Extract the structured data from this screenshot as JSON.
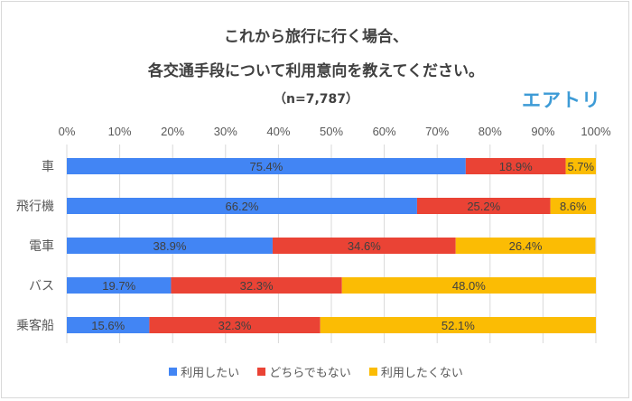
{
  "title_line1": "これから旅行に行く場合、",
  "title_line2": "各交通手段について利用意向を教えてください。",
  "subtitle": "（n=7,787）",
  "logo": "エアトリ",
  "chart_data": {
    "type": "bar",
    "orientation": "horizontal",
    "stacked": "100%",
    "title": "これから旅行に行く場合、各交通手段について利用意向を教えてください。",
    "categories": [
      "車",
      "飛行機",
      "電車",
      "バス",
      "乗客船"
    ],
    "series": [
      {
        "name": "利用したい",
        "color": "#4285F4",
        "values": [
          75.4,
          66.2,
          38.9,
          19.7,
          15.6
        ]
      },
      {
        "name": "どちらでもない",
        "color": "#EA4335",
        "values": [
          18.9,
          25.2,
          34.6,
          32.3,
          32.3
        ]
      },
      {
        "name": "利用したくない",
        "color": "#FBBC04",
        "values": [
          5.7,
          8.6,
          26.4,
          48.0,
          52.1
        ]
      }
    ],
    "xticks": [
      "0%",
      "10%",
      "20%",
      "30%",
      "40%",
      "50%",
      "60%",
      "70%",
      "80%",
      "90%",
      "100%"
    ],
    "xlim": [
      0,
      100
    ],
    "grid": true,
    "legend": "bottom"
  }
}
